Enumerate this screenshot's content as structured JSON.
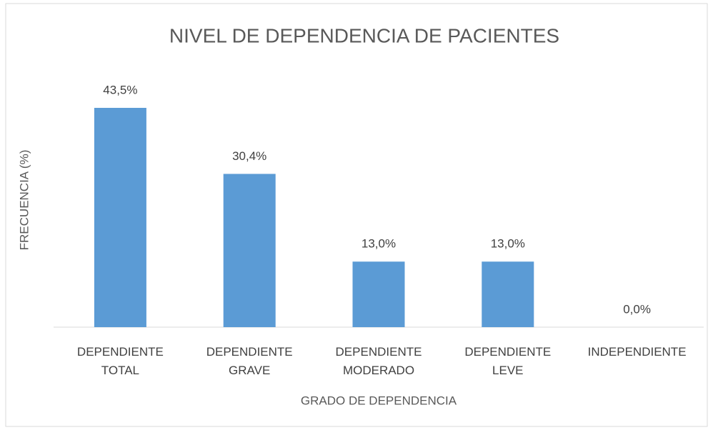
{
  "chart_data": {
    "type": "bar",
    "title": "NIVEL DE DEPENDENCIA DE PACIENTES",
    "x_label": "GRADO DE DEPENDENCIA",
    "y_label": "FRECUENCIA (%)",
    "categories": [
      "DEPENDIENTE TOTAL",
      "DEPENDIENTE GRAVE",
      "DEPENDIENTE MODERADO",
      "DEPENDIENTE LEVE",
      "INDEPENDIENTE"
    ],
    "values": [
      43.5,
      30.4,
      13.0,
      13.0,
      0.0
    ],
    "value_labels": [
      "43,5%",
      "30,4%",
      "13,0%",
      "13,0%",
      "0,0%"
    ],
    "color": "#5b9bd5"
  }
}
